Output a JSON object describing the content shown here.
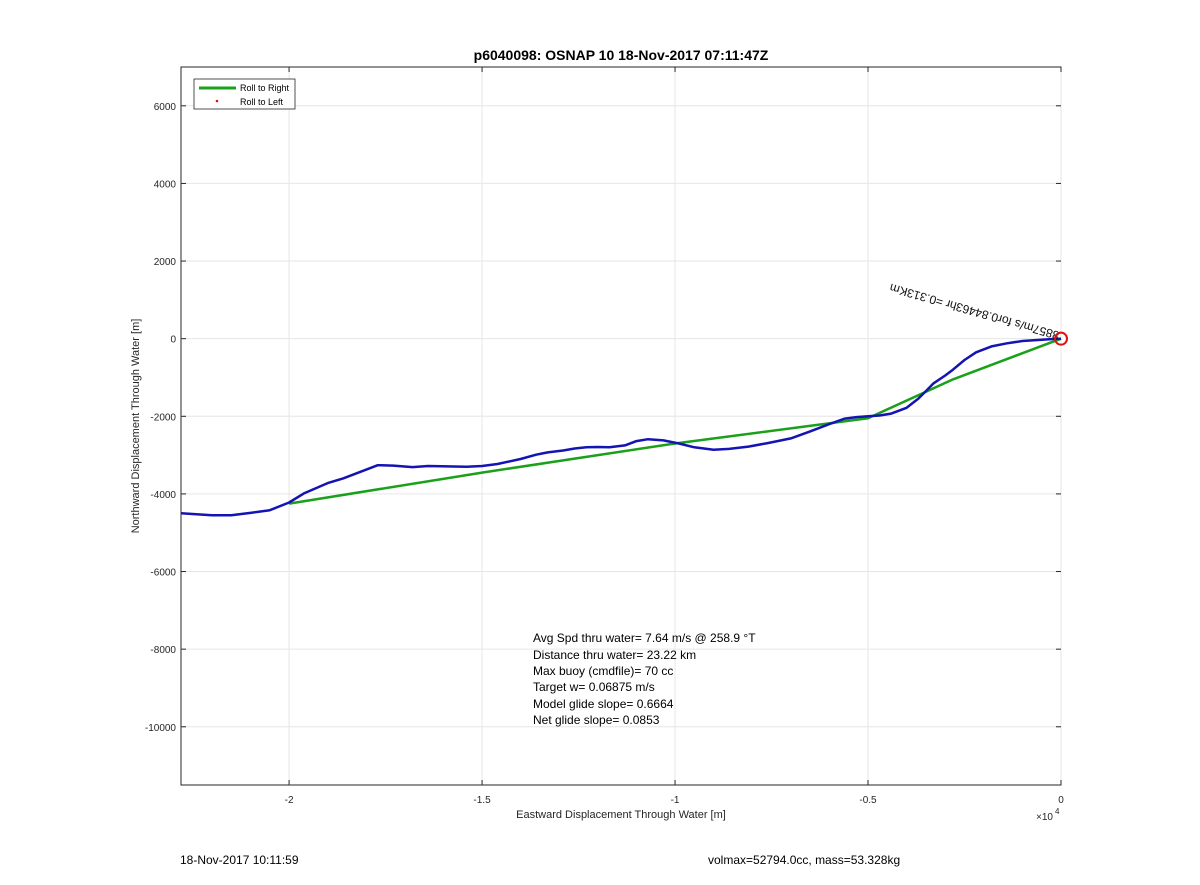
{
  "chart_data": {
    "type": "line",
    "title": "p6040098: OSNAP 10 18-Nov-2017 07:11:47Z",
    "xlabel": "Eastward Displacement Through Water [m]",
    "ylabel": "Northward Displacement Through Water [m]",
    "x_exponent_label": "×10",
    "x_exponent_power": "4",
    "xlim": [
      -22800,
      0
    ],
    "ylim": [
      -11500,
      7000
    ],
    "x_ticks": [
      -20000,
      -15000,
      -10000,
      -5000,
      0
    ],
    "x_tick_labels": [
      "-2",
      "-1.5",
      "-1",
      "-0.5",
      "0"
    ],
    "y_ticks": [
      6000,
      4000,
      2000,
      0,
      -2000,
      -4000,
      -6000,
      -8000,
      -10000
    ],
    "y_tick_labels": [
      "6000",
      "4000",
      "2000",
      "0",
      "-2000",
      "-4000",
      "-6000",
      "-8000",
      "-10000"
    ],
    "grid": true,
    "legend_placement": "top-left",
    "legend": [
      {
        "label": "Roll to Right",
        "color": "#1aa01a",
        "style": "line"
      },
      {
        "label": "Roll to Left",
        "color": "#e01010",
        "style": "dot"
      }
    ],
    "series": [
      {
        "name": "Roll to Right",
        "color": "#1aa01a",
        "x": [
          0,
          -2800,
          -5000,
          -10000,
          -15000,
          -20000
        ],
        "y": [
          0,
          -1050,
          -2050,
          -2700,
          -3450,
          -4250
        ]
      },
      {
        "color": "#1414b4",
        "x": [
          -22800,
          -22000,
          -21500,
          -21000,
          -20500,
          -20000,
          -19600,
          -19300,
          -19000,
          -18600,
          -18200,
          -17700,
          -17300,
          -16800,
          -16400,
          -15900,
          -15400,
          -15000,
          -14600,
          -14000,
          -13600,
          -13300,
          -12900,
          -12600,
          -12300,
          -12000,
          -11700,
          -11300,
          -11000,
          -10700,
          -10300,
          -9900,
          -9500,
          -9000,
          -8600,
          -8100,
          -7600,
          -7000,
          -6500,
          -6000,
          -5600,
          -5300,
          -5000,
          -4700,
          -4400,
          -4000,
          -3700,
          -3500,
          -3300,
          -3000,
          -2800,
          -2500,
          -2200,
          -1800,
          -1400,
          -1000,
          -700,
          -400,
          -150,
          0
        ],
        "y": [
          -4500,
          -4550,
          -4550,
          -4490,
          -4420,
          -4220,
          -3980,
          -3850,
          -3720,
          -3600,
          -3450,
          -3260,
          -3270,
          -3310,
          -3280,
          -3290,
          -3300,
          -3280,
          -3230,
          -3100,
          -2990,
          -2930,
          -2880,
          -2830,
          -2800,
          -2790,
          -2800,
          -2750,
          -2640,
          -2590,
          -2620,
          -2700,
          -2800,
          -2860,
          -2840,
          -2780,
          -2690,
          -2570,
          -2390,
          -2200,
          -2060,
          -2020,
          -2000,
          -1980,
          -1930,
          -1780,
          -1550,
          -1350,
          -1150,
          -950,
          -800,
          -550,
          -350,
          -200,
          -120,
          -60,
          -40,
          -20,
          -5,
          0
        ]
      }
    ],
    "end_marker": {
      "x": 0,
      "y": 0,
      "color": "#e01010"
    },
    "track_annotation": "mx  !()",
    "annotation_lines": [
      "Avg Spd thru water=  7.64 m/s @ 258.9 °T",
      "Distance thru water= 23.22 km",
      "Max buoy (cmdfile)= 70 cc",
      "Target w= 0.06875 m/s",
      "Model glide slope= 0.6664",
      "Net glide slope= 0.0853"
    ]
  },
  "overlay_text": "8857m/s for0.84463hr =0.313Km",
  "footer": {
    "left": "18-Nov-2017 10:11:59",
    "right": "volmax=52794.0cc, mass=53.328kg"
  }
}
